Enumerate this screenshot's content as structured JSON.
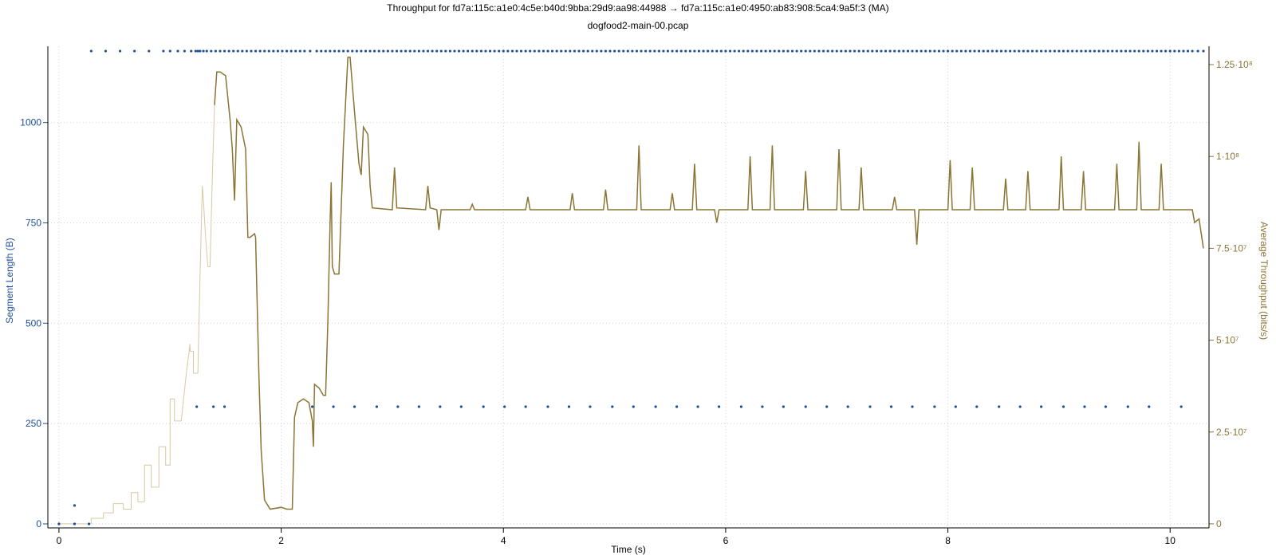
{
  "chart_data": {
    "type": "line",
    "title": "Throughput for fd7a:115c:a1e0:4c5e:b40d:9bba:29d9:aa98:44988 → fd7a:115c:a1e0:4950:ab83:908:5ca4:9a5f:3 (MA)",
    "subtitle": "dogfood2-main-00.pcap",
    "xlabel": "Time (s)",
    "ylabel_left": "Segment Length (B)",
    "ylabel_right": "Average Throughput (bits/s)",
    "xlim": [
      -0.1,
      10.35
    ],
    "ylim_left": [
      -10,
      1190
    ],
    "ylim_right": [
      -1100000.0,
      130000000.0
    ],
    "x_ticks": [
      0,
      2,
      4,
      6,
      8,
      10
    ],
    "x_tick_labels": [
      "0",
      "2",
      "4",
      "6",
      "8",
      "10"
    ],
    "left_ticks": [
      0,
      250,
      500,
      750,
      1000
    ],
    "left_tick_labels": [
      "0",
      "250",
      "500",
      "750",
      "1000"
    ],
    "right_ticks": [
      0,
      25000000,
      50000000,
      75000000,
      100000000,
      125000000
    ],
    "right_tick_labels": [
      "0",
      "2.5·10⁷",
      "5·10⁷",
      "7.5·10⁷",
      "1·10⁸",
      "1.25·10⁸"
    ],
    "grid": true,
    "colors": {
      "segments": "#1f4e96",
      "throughput": "#8a7535",
      "throughput_ramp": "#d6c9a3"
    },
    "series": [
      {
        "axis": "left",
        "kind": "scatter",
        "points_top": {
          "y": 1178,
          "x": [
            0.29,
            0.42,
            0.55,
            0.68,
            0.81,
            0.94,
            1.0,
            1.07,
            1.13,
            1.19,
            1.23,
            1.25,
            1.27,
            1.3,
            1.33,
            1.37,
            1.41,
            1.45,
            1.49,
            1.53,
            1.57,
            1.61,
            1.65,
            1.69,
            1.73,
            1.77,
            1.81,
            1.85,
            1.89,
            1.93,
            1.97,
            2.01,
            2.05,
            2.09,
            2.13,
            2.17,
            2.21,
            2.26,
            2.32,
            2.36,
            2.4,
            2.44,
            2.48,
            2.52,
            2.56,
            2.6,
            2.64,
            2.68,
            2.72,
            2.76,
            2.8,
            2.84,
            2.88,
            2.92,
            2.96,
            3.0,
            3.04,
            3.08,
            3.12,
            3.16,
            3.2,
            3.24,
            3.28,
            3.32,
            3.36,
            3.4,
            3.44,
            3.48,
            3.52,
            3.56,
            3.6,
            3.64,
            3.68,
            3.72,
            3.76,
            3.8,
            3.84,
            3.88,
            3.92,
            3.96,
            4.0,
            4.04,
            4.08,
            4.12,
            4.16,
            4.2,
            4.24,
            4.28,
            4.32,
            4.36,
            4.4,
            4.44,
            4.48,
            4.52,
            4.56,
            4.6,
            4.64,
            4.68,
            4.72,
            4.76,
            4.8,
            4.84,
            4.88,
            4.92,
            4.96,
            5.0,
            5.04,
            5.08,
            5.12,
            5.16,
            5.2,
            5.24,
            5.28,
            5.32,
            5.36,
            5.4,
            5.44,
            5.48,
            5.52,
            5.56,
            5.6,
            5.64,
            5.68,
            5.72,
            5.76,
            5.8,
            5.84,
            5.88,
            5.92,
            5.96,
            6.0,
            6.04,
            6.08,
            6.12,
            6.16,
            6.2,
            6.24,
            6.28,
            6.32,
            6.36,
            6.4,
            6.44,
            6.48,
            6.52,
            6.56,
            6.6,
            6.64,
            6.68,
            6.72,
            6.76,
            6.8,
            6.84,
            6.88,
            6.92,
            6.96,
            7.0,
            7.04,
            7.08,
            7.12,
            7.16,
            7.2,
            7.24,
            7.28,
            7.32,
            7.36,
            7.4,
            7.44,
            7.48,
            7.52,
            7.56,
            7.6,
            7.64,
            7.68,
            7.72,
            7.76,
            7.8,
            7.84,
            7.88,
            7.92,
            7.96,
            8.0,
            8.04,
            8.08,
            8.12,
            8.16,
            8.2,
            8.24,
            8.28,
            8.32,
            8.36,
            8.4,
            8.44,
            8.48,
            8.52,
            8.56,
            8.6,
            8.64,
            8.68,
            8.72,
            8.76,
            8.8,
            8.84,
            8.88,
            8.92,
            8.96,
            9.0,
            9.04,
            9.08,
            9.12,
            9.16,
            9.2,
            9.24,
            9.28,
            9.32,
            9.36,
            9.4,
            9.44,
            9.48,
            9.52,
            9.56,
            9.6,
            9.64,
            9.68,
            9.72,
            9.76,
            9.8,
            9.84,
            9.88,
            9.92,
            9.96,
            10.0,
            10.04,
            10.08,
            10.12,
            10.16,
            10.2,
            10.25,
            10.3
          ]
        },
        "points_mid": {
          "y": 292,
          "x": [
            1.24,
            1.39,
            1.49,
            2.28,
            2.47,
            2.66,
            2.86,
            3.05,
            3.24,
            3.43,
            3.62,
            3.82,
            4.01,
            4.2,
            4.4,
            4.59,
            4.78,
            4.98,
            5.17,
            5.37,
            5.56,
            5.75,
            5.94,
            6.14,
            6.33,
            6.52,
            6.72,
            6.91,
            7.1,
            7.3,
            7.49,
            7.68,
            7.88,
            8.07,
            8.26,
            8.46,
            8.65,
            8.84,
            9.04,
            9.23,
            9.42,
            9.62,
            9.81,
            10.1
          ]
        },
        "points_low": [
          [
            0.0,
            0
          ],
          [
            0.14,
            0
          ],
          [
            0.27,
            0
          ],
          [
            0.14,
            46
          ]
        ]
      },
      {
        "axis": "right",
        "kind": "line",
        "points": [
          [
            0.0,
            0
          ],
          [
            0.29,
            0
          ],
          [
            0.29,
            1500000.0
          ],
          [
            0.4,
            1500000.0
          ],
          [
            0.4,
            3000000.0
          ],
          [
            0.49,
            3000000.0
          ],
          [
            0.49,
            5500000.0
          ],
          [
            0.58,
            5500000.0
          ],
          [
            0.58,
            4000000.0
          ],
          [
            0.65,
            4000000.0
          ],
          [
            0.65,
            8500000.0
          ],
          [
            0.71,
            8500000.0
          ],
          [
            0.71,
            6000000.0
          ],
          [
            0.77,
            6000000.0
          ],
          [
            0.77,
            16000000.0
          ],
          [
            0.83,
            16000000.0
          ],
          [
            0.83,
            10000000.0
          ],
          [
            0.9,
            10000000.0
          ],
          [
            0.9,
            21000000.0
          ],
          [
            0.96,
            21000000.0
          ],
          [
            0.96,
            16000000.0
          ],
          [
            1.0,
            16000000.0
          ],
          [
            1.0,
            34000000.0
          ],
          [
            1.04,
            34000000.0
          ],
          [
            1.04,
            28000000.0
          ],
          [
            1.1,
            28000000.0
          ],
          [
            1.15,
            42000000.0
          ],
          [
            1.18,
            49000000.0
          ],
          [
            1.18,
            47000000.0
          ],
          [
            1.21,
            47000000.0
          ],
          [
            1.21,
            41000000.0
          ],
          [
            1.25,
            41000000.0
          ],
          [
            1.27,
            68000000.0
          ],
          [
            1.29,
            92000000.0
          ],
          [
            1.3,
            88000000.0
          ],
          [
            1.32,
            78000000.0
          ],
          [
            1.34,
            70000000.0
          ],
          [
            1.36,
            70000000.0
          ],
          [
            1.38,
            94000000.0
          ],
          [
            1.4,
            114000000.0
          ],
          [
            1.42,
            123000000.0
          ],
          [
            1.45,
            123000000.0
          ],
          [
            1.5,
            122000000.0
          ],
          [
            1.54,
            110000000.0
          ],
          [
            1.56,
            102000000.0
          ],
          [
            1.58,
            88000000.0
          ],
          [
            1.6,
            110000000.0
          ],
          [
            1.64,
            108000000.0
          ],
          [
            1.68,
            102000000.0
          ],
          [
            1.7,
            78000000.0
          ],
          [
            1.72,
            78000000.0
          ],
          [
            1.76,
            79000000.0
          ],
          [
            1.77,
            78000000.0
          ],
          [
            1.78,
            65000000.0
          ],
          [
            1.8,
            40000000.0
          ],
          [
            1.82,
            20000000.0
          ],
          [
            1.85,
            6500000.0
          ],
          [
            1.9,
            4000000.0
          ],
          [
            2.0,
            4500000.0
          ],
          [
            2.05,
            4000000.0
          ],
          [
            2.1,
            4000000.0
          ],
          [
            2.12,
            29000000.0
          ],
          [
            2.15,
            33000000.0
          ],
          [
            2.2,
            34000000.0
          ],
          [
            2.25,
            33000000.0
          ],
          [
            2.28,
            28000000.0
          ],
          [
            2.29,
            21000000.0
          ],
          [
            2.3,
            38000000.0
          ],
          [
            2.34,
            37000000.0
          ],
          [
            2.38,
            35000000.0
          ],
          [
            2.4,
            35000000.0
          ],
          [
            2.42,
            55000000.0
          ],
          [
            2.44,
            82000000.0
          ],
          [
            2.45,
            93000000.0
          ],
          [
            2.46,
            70000000.0
          ],
          [
            2.48,
            68000000.0
          ],
          [
            2.52,
            68000000.0
          ],
          [
            2.56,
            103000000.0
          ],
          [
            2.6,
            127000000.0
          ],
          [
            2.62,
            127000000.0
          ],
          [
            2.66,
            112000000.0
          ],
          [
            2.7,
            98000000.0
          ],
          [
            2.72,
            95000000.0
          ],
          [
            2.74,
            108000000.0
          ],
          [
            2.78,
            106000000.0
          ],
          [
            2.8,
            92000000.0
          ],
          [
            2.82,
            86000000.0
          ],
          [
            3.0,
            85500000.0
          ],
          [
            3.02,
            97000000.0
          ],
          [
            3.04,
            86000000.0
          ],
          [
            3.3,
            85500000.0
          ],
          [
            3.32,
            92000000.0
          ],
          [
            3.34,
            86000000.0
          ],
          [
            3.4,
            85500000.0
          ],
          [
            3.42,
            80000000.0
          ],
          [
            3.44,
            85500000.0
          ],
          [
            3.7,
            85500000.0
          ],
          [
            3.72,
            87000000.0
          ],
          [
            3.74,
            85500000.0
          ],
          [
            4.2,
            85500000.0
          ],
          [
            4.22,
            89000000.0
          ],
          [
            4.24,
            85500000.0
          ],
          [
            4.6,
            85500000.0
          ],
          [
            4.62,
            90000000.0
          ],
          [
            4.64,
            85500000.0
          ],
          [
            4.9,
            85500000.0
          ],
          [
            4.92,
            91000000.0
          ],
          [
            4.94,
            85500000.0
          ],
          [
            5.2,
            85500000.0
          ],
          [
            5.22,
            103000000.0
          ],
          [
            5.24,
            85500000.0
          ],
          [
            5.5,
            85500000.0
          ],
          [
            5.52,
            90000000.0
          ],
          [
            5.54,
            85500000.0
          ],
          [
            5.7,
            85500000.0
          ],
          [
            5.72,
            98000000.0
          ],
          [
            5.74,
            85500000.0
          ],
          [
            5.9,
            85500000.0
          ],
          [
            5.92,
            82000000.0
          ],
          [
            5.94,
            85500000.0
          ],
          [
            6.2,
            85500000.0
          ],
          [
            6.22,
            100000000.0
          ],
          [
            6.24,
            85500000.0
          ],
          [
            6.4,
            85500000.0
          ],
          [
            6.42,
            103000000.0
          ],
          [
            6.44,
            85500000.0
          ],
          [
            6.7,
            85500000.0
          ],
          [
            6.72,
            96000000.0
          ],
          [
            6.74,
            85500000.0
          ],
          [
            7.0,
            85500000.0
          ],
          [
            7.02,
            102000000.0
          ],
          [
            7.04,
            85500000.0
          ],
          [
            7.2,
            85500000.0
          ],
          [
            7.22,
            97000000.0
          ],
          [
            7.24,
            85500000.0
          ],
          [
            7.5,
            85500000.0
          ],
          [
            7.52,
            89000000.0
          ],
          [
            7.54,
            85500000.0
          ],
          [
            7.7,
            85500000.0
          ],
          [
            7.72,
            76000000.0
          ],
          [
            7.74,
            85500000.0
          ],
          [
            8.0,
            85500000.0
          ],
          [
            8.02,
            99000000.0
          ],
          [
            8.04,
            85500000.0
          ],
          [
            8.2,
            85500000.0
          ],
          [
            8.22,
            97000000.0
          ],
          [
            8.24,
            85500000.0
          ],
          [
            8.5,
            85500000.0
          ],
          [
            8.52,
            94000000.0
          ],
          [
            8.54,
            85500000.0
          ],
          [
            8.7,
            85500000.0
          ],
          [
            8.72,
            96000000.0
          ],
          [
            8.74,
            85500000.0
          ],
          [
            9.0,
            85500000.0
          ],
          [
            9.02,
            100000000.0
          ],
          [
            9.04,
            85500000.0
          ],
          [
            9.2,
            85500000.0
          ],
          [
            9.22,
            96000000.0
          ],
          [
            9.24,
            85500000.0
          ],
          [
            9.5,
            85500000.0
          ],
          [
            9.52,
            98000000.0
          ],
          [
            9.54,
            85500000.0
          ],
          [
            9.7,
            85500000.0
          ],
          [
            9.72,
            104000000.0
          ],
          [
            9.74,
            85500000.0
          ],
          [
            9.9,
            85500000.0
          ],
          [
            9.92,
            98000000.0
          ],
          [
            9.94,
            85500000.0
          ],
          [
            10.2,
            85500000.0
          ],
          [
            10.22,
            82000000.0
          ],
          [
            10.26,
            83000000.0
          ],
          [
            10.3,
            75000000.0
          ]
        ]
      }
    ]
  }
}
